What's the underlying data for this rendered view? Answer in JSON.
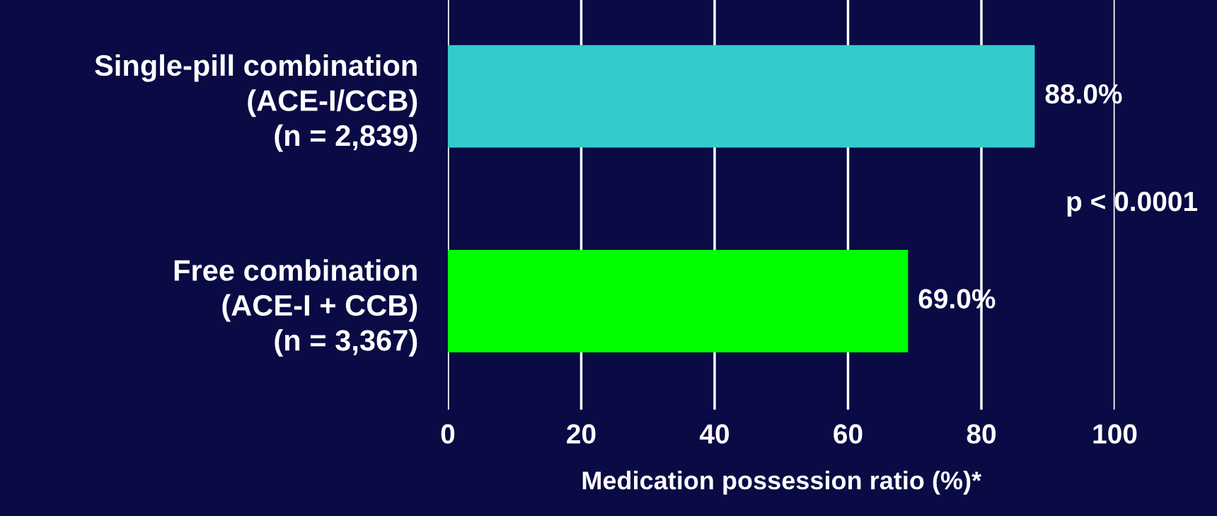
{
  "chart_data": {
    "type": "bar",
    "orientation": "horizontal",
    "categories": [
      "Single-pill combination\n(ACE-I/CCB)\n(n = 2,839)",
      "Free combination\n(ACE-I + CCB)\n(n = 3,367)"
    ],
    "values": [
      88.0,
      69.0
    ],
    "colors": [
      "#33cccc",
      "#00ff00"
    ],
    "value_labels": [
      "88.0%",
      "69.0%"
    ],
    "xlim": [
      0,
      100
    ],
    "xticks": [
      0,
      20,
      40,
      60,
      80,
      100
    ],
    "xlabel": "Medication possession ratio (%)*",
    "annotations": [
      "p < 0.0001"
    ],
    "grid": "x"
  }
}
